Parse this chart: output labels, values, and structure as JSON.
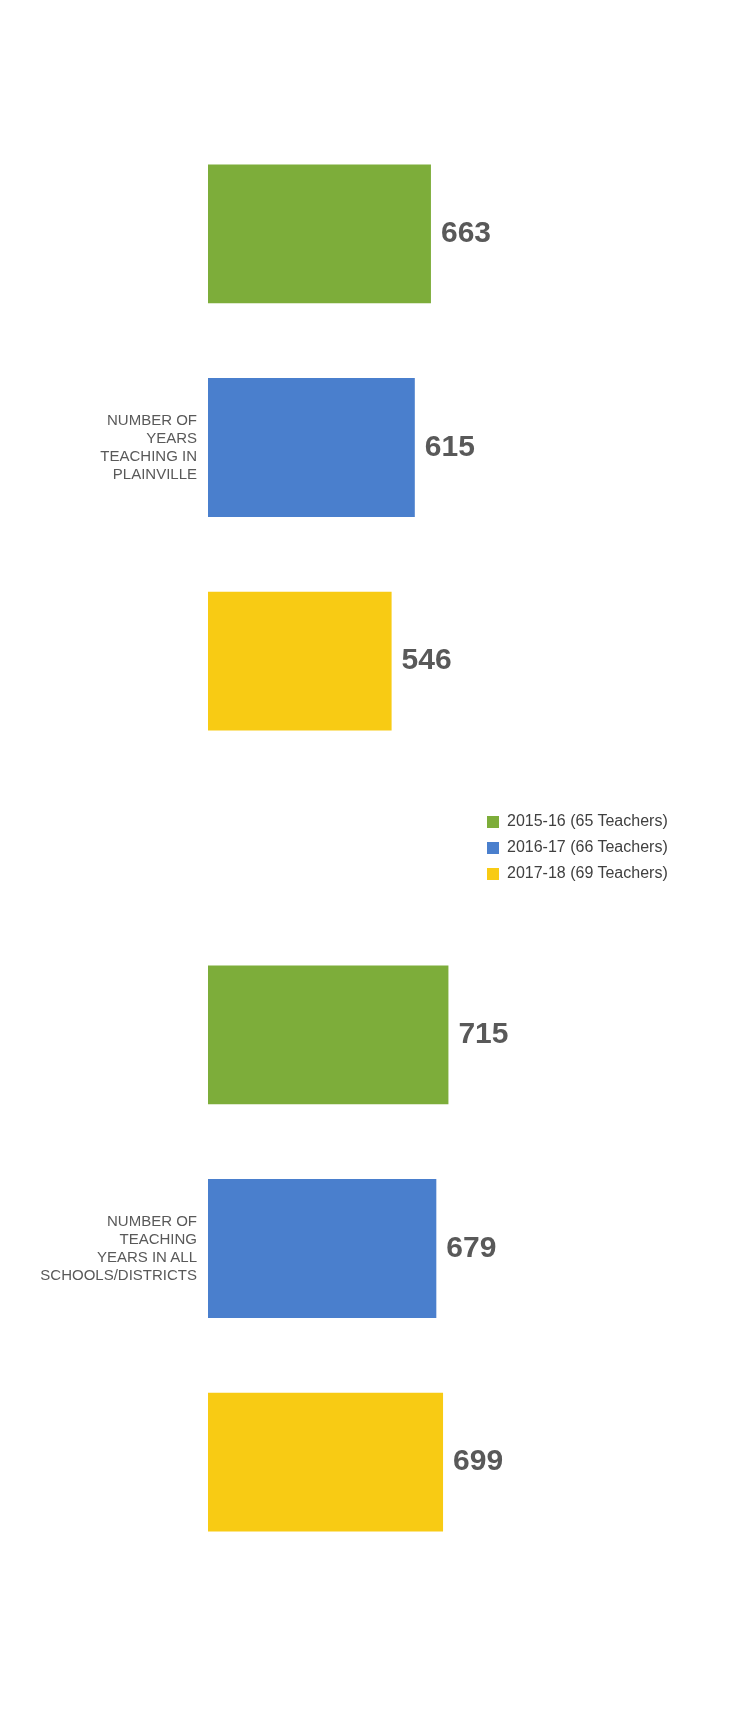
{
  "chart_data": {
    "type": "bar",
    "orientation": "horizontal",
    "categories": [
      "NUMBER OF YEARS TEACHING IN PLAINVILLE",
      "NUMBER OF TEACHING YEARS IN ALL SCHOOLS/DISTRICTS"
    ],
    "series": [
      {
        "name": "2015-16 (65 Teachers)",
        "color": "#7dad3a",
        "values": [
          663,
          715
        ]
      },
      {
        "name": "2016-17 (66 Teachers)",
        "color": "#4a7fcd",
        "values": [
          615,
          679
        ]
      },
      {
        "name": "2017-18 (69 Teachers)",
        "color": "#f8cb14",
        "values": [
          546,
          699
        ]
      }
    ],
    "data_labels": true,
    "legend": "right"
  }
}
